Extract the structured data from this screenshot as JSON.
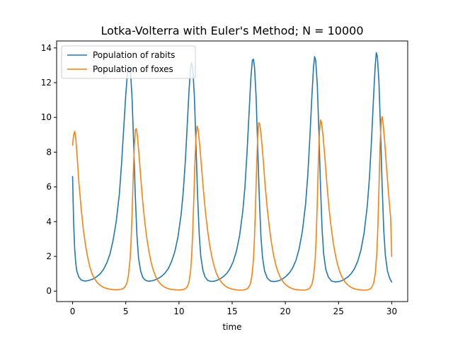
{
  "chart_data": {
    "type": "line",
    "title": "Lotka-Volterra with Euler's Method; N = 10000",
    "xlabel": "time",
    "ylabel": "",
    "xlim": [
      -1.5,
      31.5
    ],
    "ylim": [
      -0.6,
      14.4
    ],
    "xticks": [
      0,
      5,
      10,
      15,
      20,
      25,
      30
    ],
    "yticks": [
      0,
      2,
      4,
      6,
      8,
      10,
      12,
      14
    ],
    "grid": false,
    "legend_position": "top-left",
    "series": [
      {
        "name": "Population of rabits",
        "color": "#1f77b4",
        "points": [
          [
            0,
            6.6
          ],
          [
            0.1,
            3.9
          ],
          [
            0.2,
            2.4
          ],
          [
            0.3,
            1.6
          ],
          [
            0.4,
            1.15
          ],
          [
            0.6,
            0.8
          ],
          [
            0.8,
            0.65
          ],
          [
            1.0,
            0.6
          ],
          [
            1.2,
            0.58
          ],
          [
            1.4,
            0.6
          ],
          [
            1.7,
            0.65
          ],
          [
            2.0,
            0.72
          ],
          [
            2.3,
            0.85
          ],
          [
            2.6,
            1.0
          ],
          [
            2.9,
            1.25
          ],
          [
            3.2,
            1.6
          ],
          [
            3.5,
            2.1
          ],
          [
            3.8,
            2.9
          ],
          [
            4.1,
            4.0
          ],
          [
            4.4,
            5.6
          ],
          [
            4.6,
            7.3
          ],
          [
            4.8,
            9.3
          ],
          [
            5.0,
            11.3
          ],
          [
            5.15,
            12.5
          ],
          [
            5.3,
            12.95
          ],
          [
            5.45,
            12.6
          ],
          [
            5.6,
            11.0
          ],
          [
            5.75,
            8.3
          ],
          [
            5.9,
            5.4
          ],
          [
            6.05,
            3.2
          ],
          [
            6.2,
            1.9
          ],
          [
            6.4,
            1.15
          ],
          [
            6.6,
            0.8
          ],
          [
            6.8,
            0.65
          ],
          [
            7.0,
            0.59
          ],
          [
            7.2,
            0.57
          ],
          [
            7.5,
            0.6
          ],
          [
            7.8,
            0.66
          ],
          [
            8.1,
            0.75
          ],
          [
            8.4,
            0.87
          ],
          [
            8.7,
            1.05
          ],
          [
            9.0,
            1.3
          ],
          [
            9.3,
            1.7
          ],
          [
            9.6,
            2.25
          ],
          [
            9.9,
            3.1
          ],
          [
            10.2,
            4.4
          ],
          [
            10.4,
            5.7
          ],
          [
            10.6,
            7.5
          ],
          [
            10.8,
            9.8
          ],
          [
            10.95,
            11.6
          ],
          [
            11.1,
            12.9
          ],
          [
            11.2,
            13.15
          ],
          [
            11.3,
            12.8
          ],
          [
            11.45,
            11.2
          ],
          [
            11.6,
            8.4
          ],
          [
            11.75,
            5.5
          ],
          [
            11.9,
            3.3
          ],
          [
            12.05,
            2.0
          ],
          [
            12.25,
            1.2
          ],
          [
            12.45,
            0.82
          ],
          [
            12.7,
            0.62
          ],
          [
            13.0,
            0.56
          ],
          [
            13.3,
            0.57
          ],
          [
            13.6,
            0.63
          ],
          [
            13.9,
            0.72
          ],
          [
            14.2,
            0.85
          ],
          [
            14.5,
            1.03
          ],
          [
            14.8,
            1.3
          ],
          [
            15.1,
            1.7
          ],
          [
            15.4,
            2.3
          ],
          [
            15.7,
            3.2
          ],
          [
            16.0,
            4.6
          ],
          [
            16.2,
            6.0
          ],
          [
            16.4,
            8.0
          ],
          [
            16.6,
            10.4
          ],
          [
            16.75,
            12.2
          ],
          [
            16.9,
            13.3
          ],
          [
            17.0,
            13.35
          ],
          [
            17.1,
            12.9
          ],
          [
            17.25,
            11.2
          ],
          [
            17.4,
            8.3
          ],
          [
            17.55,
            5.4
          ],
          [
            17.7,
            3.2
          ],
          [
            17.85,
            1.95
          ],
          [
            18.05,
            1.15
          ],
          [
            18.3,
            0.75
          ],
          [
            18.6,
            0.58
          ],
          [
            18.9,
            0.55
          ],
          [
            19.2,
            0.57
          ],
          [
            19.5,
            0.63
          ],
          [
            19.8,
            0.73
          ],
          [
            20.1,
            0.87
          ],
          [
            20.4,
            1.07
          ],
          [
            20.7,
            1.35
          ],
          [
            21.0,
            1.78
          ],
          [
            21.3,
            2.45
          ],
          [
            21.6,
            3.45
          ],
          [
            21.9,
            5.0
          ],
          [
            22.1,
            6.6
          ],
          [
            22.3,
            8.8
          ],
          [
            22.5,
            11.3
          ],
          [
            22.65,
            12.9
          ],
          [
            22.75,
            13.5
          ],
          [
            22.85,
            13.3
          ],
          [
            23.0,
            11.9
          ],
          [
            23.15,
            9.2
          ],
          [
            23.3,
            6.1
          ],
          [
            23.45,
            3.6
          ],
          [
            23.6,
            2.15
          ],
          [
            23.8,
            1.25
          ],
          [
            24.05,
            0.8
          ],
          [
            24.35,
            0.58
          ],
          [
            24.7,
            0.53
          ],
          [
            25.0,
            0.55
          ],
          [
            25.3,
            0.6
          ],
          [
            25.6,
            0.7
          ],
          [
            25.9,
            0.83
          ],
          [
            26.2,
            1.02
          ],
          [
            26.5,
            1.3
          ],
          [
            26.8,
            1.72
          ],
          [
            27.1,
            2.35
          ],
          [
            27.4,
            3.35
          ],
          [
            27.7,
            4.9
          ],
          [
            27.9,
            6.5
          ],
          [
            28.1,
            8.7
          ],
          [
            28.3,
            11.3
          ],
          [
            28.45,
            13.0
          ],
          [
            28.55,
            13.72
          ],
          [
            28.65,
            13.5
          ],
          [
            28.8,
            12.0
          ],
          [
            28.95,
            9.2
          ],
          [
            29.1,
            6.0
          ],
          [
            29.25,
            3.5
          ],
          [
            29.4,
            2.05
          ],
          [
            29.6,
            1.15
          ],
          [
            29.8,
            0.75
          ],
          [
            30.0,
            0.52
          ]
        ]
      },
      {
        "name": "Population of foxes",
        "color": "#ff7f0e",
        "points": [
          [
            0,
            8.4
          ],
          [
            0.1,
            9.0
          ],
          [
            0.2,
            9.2
          ],
          [
            0.3,
            8.8
          ],
          [
            0.4,
            8.0
          ],
          [
            0.5,
            7.1
          ],
          [
            0.6,
            6.2
          ],
          [
            0.8,
            4.8
          ],
          [
            1.0,
            3.6
          ],
          [
            1.2,
            2.7
          ],
          [
            1.4,
            2.0
          ],
          [
            1.6,
            1.45
          ],
          [
            1.8,
            1.05
          ],
          [
            2.0,
            0.78
          ],
          [
            2.3,
            0.5
          ],
          [
            2.6,
            0.33
          ],
          [
            2.9,
            0.22
          ],
          [
            3.2,
            0.15
          ],
          [
            3.5,
            0.11
          ],
          [
            3.8,
            0.09
          ],
          [
            4.1,
            0.08
          ],
          [
            4.4,
            0.09
          ],
          [
            4.7,
            0.13
          ],
          [
            4.9,
            0.22
          ],
          [
            5.1,
            0.45
          ],
          [
            5.25,
            0.9
          ],
          [
            5.4,
            1.8
          ],
          [
            5.5,
            2.9
          ],
          [
            5.6,
            4.6
          ],
          [
            5.7,
            6.6
          ],
          [
            5.8,
            8.3
          ],
          [
            5.9,
            9.3
          ],
          [
            6.0,
            9.35
          ],
          [
            6.1,
            8.9
          ],
          [
            6.25,
            7.8
          ],
          [
            6.4,
            6.6
          ],
          [
            6.6,
            5.1
          ],
          [
            6.8,
            3.9
          ],
          [
            7.0,
            2.95
          ],
          [
            7.2,
            2.2
          ],
          [
            7.4,
            1.62
          ],
          [
            7.6,
            1.18
          ],
          [
            7.8,
            0.86
          ],
          [
            8.0,
            0.62
          ],
          [
            8.3,
            0.39
          ],
          [
            8.6,
            0.25
          ],
          [
            8.9,
            0.16
          ],
          [
            9.2,
            0.11
          ],
          [
            9.5,
            0.08
          ],
          [
            9.8,
            0.07
          ],
          [
            10.1,
            0.07
          ],
          [
            10.4,
            0.09
          ],
          [
            10.6,
            0.14
          ],
          [
            10.8,
            0.27
          ],
          [
            10.95,
            0.55
          ],
          [
            11.1,
            1.2
          ],
          [
            11.2,
            2.1
          ],
          [
            11.3,
            3.5
          ],
          [
            11.4,
            5.4
          ],
          [
            11.5,
            7.4
          ],
          [
            11.6,
            8.9
          ],
          [
            11.7,
            9.5
          ],
          [
            11.8,
            9.3
          ],
          [
            11.95,
            8.4
          ],
          [
            12.1,
            7.3
          ],
          [
            12.3,
            5.8
          ],
          [
            12.5,
            4.5
          ],
          [
            12.7,
            3.45
          ],
          [
            12.9,
            2.6
          ],
          [
            13.1,
            1.95
          ],
          [
            13.3,
            1.45
          ],
          [
            13.5,
            1.06
          ],
          [
            13.7,
            0.78
          ],
          [
            14.0,
            0.5
          ],
          [
            14.3,
            0.32
          ],
          [
            14.6,
            0.2
          ],
          [
            14.9,
            0.13
          ],
          [
            15.2,
            0.09
          ],
          [
            15.5,
            0.07
          ],
          [
            15.8,
            0.06
          ],
          [
            16.1,
            0.07
          ],
          [
            16.3,
            0.1
          ],
          [
            16.5,
            0.18
          ],
          [
            16.7,
            0.4
          ],
          [
            16.85,
            0.85
          ],
          [
            17.0,
            1.8
          ],
          [
            17.1,
            3.1
          ],
          [
            17.2,
            5.0
          ],
          [
            17.3,
            7.2
          ],
          [
            17.4,
            8.9
          ],
          [
            17.5,
            9.7
          ],
          [
            17.6,
            9.6
          ],
          [
            17.75,
            8.8
          ],
          [
            17.9,
            7.7
          ],
          [
            18.1,
            6.1
          ],
          [
            18.3,
            4.75
          ],
          [
            18.5,
            3.65
          ],
          [
            18.7,
            2.75
          ],
          [
            18.9,
            2.05
          ],
          [
            19.1,
            1.52
          ],
          [
            19.3,
            1.12
          ],
          [
            19.5,
            0.82
          ],
          [
            19.8,
            0.52
          ],
          [
            20.1,
            0.33
          ],
          [
            20.4,
            0.21
          ],
          [
            20.7,
            0.13
          ],
          [
            21.0,
            0.09
          ],
          [
            21.3,
            0.07
          ],
          [
            21.6,
            0.06
          ],
          [
            21.9,
            0.07
          ],
          [
            22.1,
            0.1
          ],
          [
            22.3,
            0.18
          ],
          [
            22.5,
            0.4
          ],
          [
            22.65,
            0.85
          ],
          [
            22.8,
            1.8
          ],
          [
            22.9,
            3.1
          ],
          [
            23.0,
            5.1
          ],
          [
            23.1,
            7.4
          ],
          [
            23.2,
            9.1
          ],
          [
            23.3,
            9.85
          ],
          [
            23.4,
            9.7
          ],
          [
            23.55,
            8.9
          ],
          [
            23.7,
            7.8
          ],
          [
            23.9,
            6.2
          ],
          [
            24.1,
            4.8
          ],
          [
            24.3,
            3.7
          ],
          [
            24.5,
            2.8
          ],
          [
            24.7,
            2.1
          ],
          [
            24.9,
            1.55
          ],
          [
            25.1,
            1.14
          ],
          [
            25.3,
            0.84
          ],
          [
            25.6,
            0.53
          ],
          [
            25.9,
            0.34
          ],
          [
            26.2,
            0.21
          ],
          [
            26.5,
            0.13
          ],
          [
            26.8,
            0.09
          ],
          [
            27.1,
            0.07
          ],
          [
            27.4,
            0.06
          ],
          [
            27.7,
            0.07
          ],
          [
            27.9,
            0.1
          ],
          [
            28.1,
            0.2
          ],
          [
            28.3,
            0.45
          ],
          [
            28.45,
            1.0
          ],
          [
            28.6,
            2.2
          ],
          [
            28.7,
            3.8
          ],
          [
            28.8,
            6.0
          ],
          [
            28.9,
            8.3
          ],
          [
            29.0,
            9.8
          ],
          [
            29.1,
            10.05
          ],
          [
            29.2,
            9.6
          ],
          [
            29.35,
            8.5
          ],
          [
            29.5,
            7.2
          ],
          [
            29.7,
            5.6
          ],
          [
            29.9,
            4.2
          ],
          [
            30.0,
            2.0
          ]
        ]
      }
    ]
  }
}
